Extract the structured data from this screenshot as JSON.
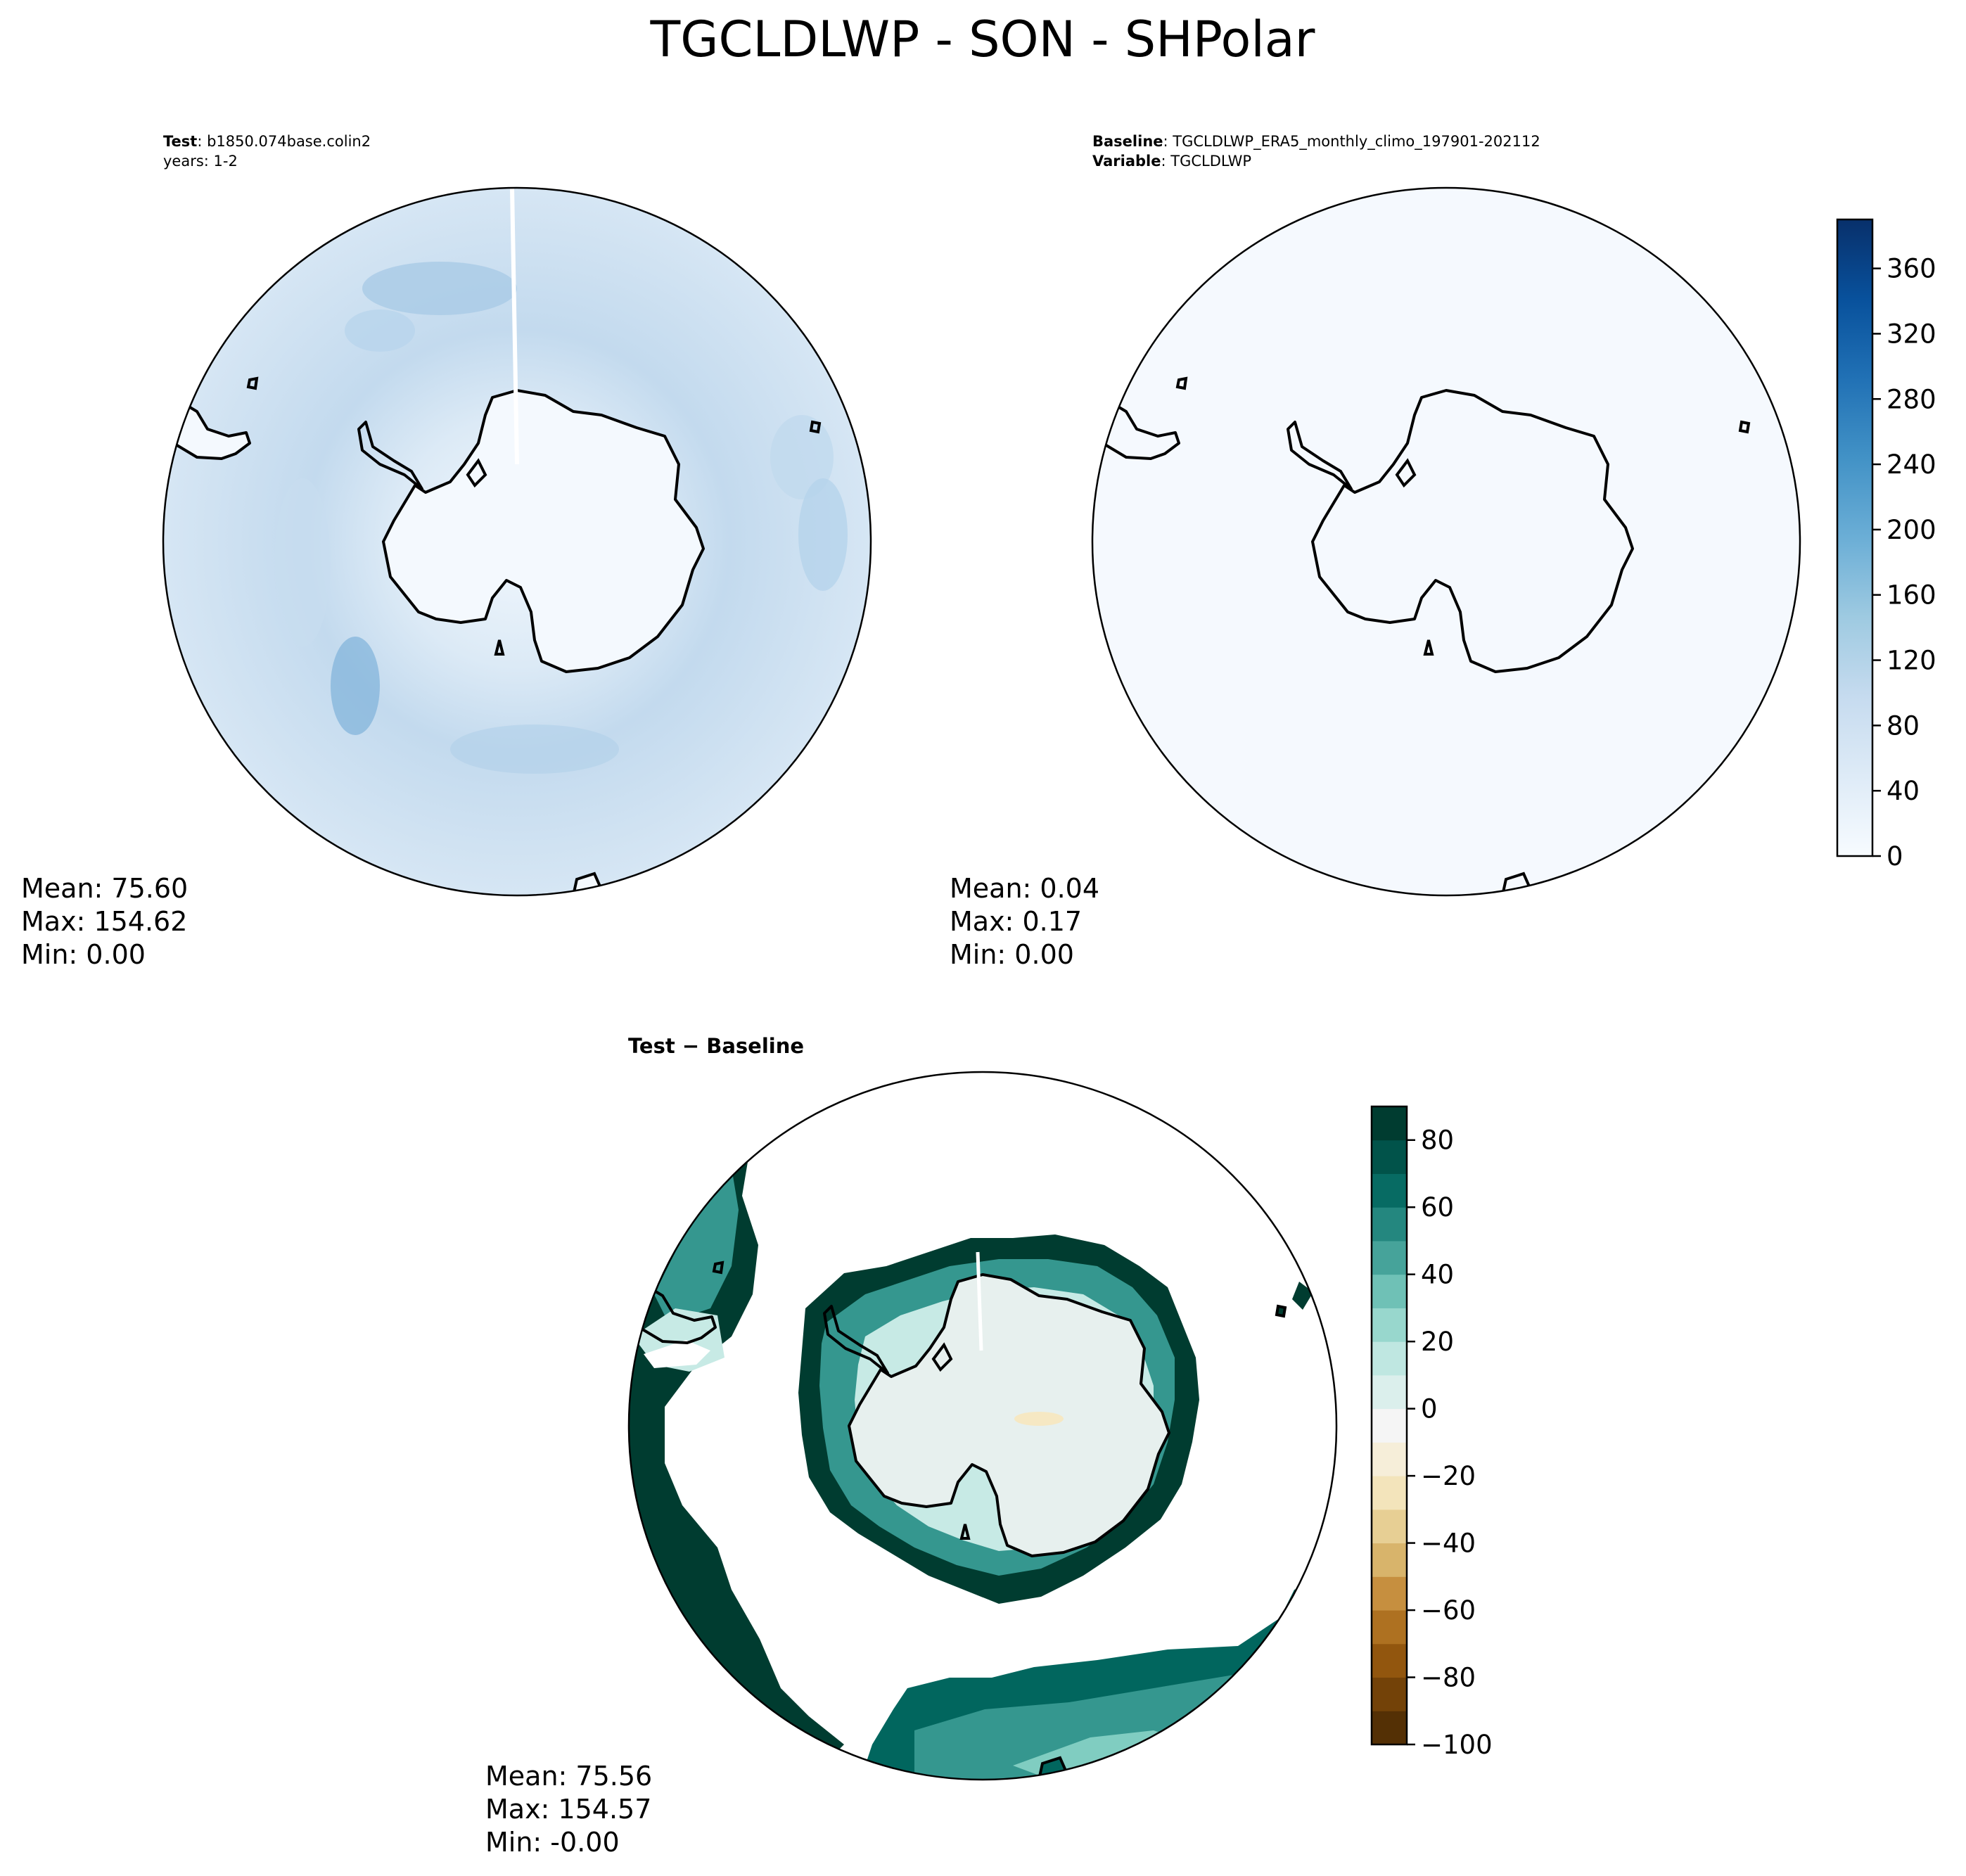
{
  "title": "TGCLDLWP - SON - SHPolar",
  "panels": {
    "test": {
      "header_key1": "Test",
      "header_val1": ": b1850.074base.colin2",
      "header_line2": "years: 1-2",
      "stats": {
        "mean": "Mean: 75.60",
        "max": "Max: 154.62",
        "min": "Min:  0.00"
      }
    },
    "baseline": {
      "header_key1": "Baseline",
      "header_val1": ": TGCLDLWP_ERA5_monthly_climo_197901-202112",
      "header_key2": "Variable",
      "header_val2": ": TGCLDLWP",
      "stats": {
        "mean": "Mean:  0.04",
        "max": "Max:  0.17",
        "min": "Min:  0.00"
      }
    },
    "diff": {
      "header_key1": "Test",
      "header_op": " − ",
      "header_key2": "Baseline",
      "stats": {
        "mean": "Mean: 75.56",
        "max": "Max: 154.57",
        "min": "Min: -0.00"
      }
    }
  },
  "chart_data": [
    {
      "type": "heatmap",
      "title": "Test : b1850.074base.colin2 (years: 1-2)",
      "projection": "south polar stereographic",
      "colormap": "Blues",
      "summary": {
        "mean": 75.6,
        "max": 154.62,
        "min": 0.0
      }
    },
    {
      "type": "heatmap",
      "title": "Baseline : TGCLDLWP_ERA5_monthly_climo_197901-202112 / Variable : TGCLDLWP",
      "projection": "south polar stereographic",
      "colormap": "Blues",
      "summary": {
        "mean": 0.04,
        "max": 0.17,
        "min": 0.0
      }
    },
    {
      "type": "heatmap",
      "title": "Test − Baseline",
      "projection": "south polar stereographic",
      "colormap": "BrBG",
      "summary": {
        "mean": 75.56,
        "max": 154.57,
        "min": -0.0
      }
    }
  ],
  "colorbars": {
    "shared": {
      "min": 0,
      "max": 390,
      "ticks": [
        0,
        40,
        80,
        120,
        160,
        200,
        240,
        280,
        320,
        360
      ],
      "tick_labels": [
        "0",
        "40",
        "80",
        "120",
        "160",
        "200",
        "240",
        "280",
        "320",
        "360"
      ],
      "colors": [
        "#f7fbff",
        "#deebf7",
        "#c6dbef",
        "#9ecae1",
        "#6baed6",
        "#4292c6",
        "#2171b5",
        "#08519c",
        "#08306b"
      ]
    },
    "diff": {
      "min": -100,
      "max": 90,
      "ticks": [
        -100,
        -80,
        -60,
        -40,
        -20,
        0,
        20,
        40,
        60,
        80
      ],
      "tick_labels": [
        "−100",
        "−80",
        "−60",
        "−40",
        "−20",
        "0",
        "20",
        "40",
        "60",
        "80"
      ],
      "colors": [
        "#543005",
        "#8c510a",
        "#bf812d",
        "#dfc27d",
        "#f6e8c3",
        "#f5f5f5",
        "#c7eae5",
        "#80cdc1",
        "#35978f",
        "#01665e",
        "#003c30"
      ]
    }
  }
}
